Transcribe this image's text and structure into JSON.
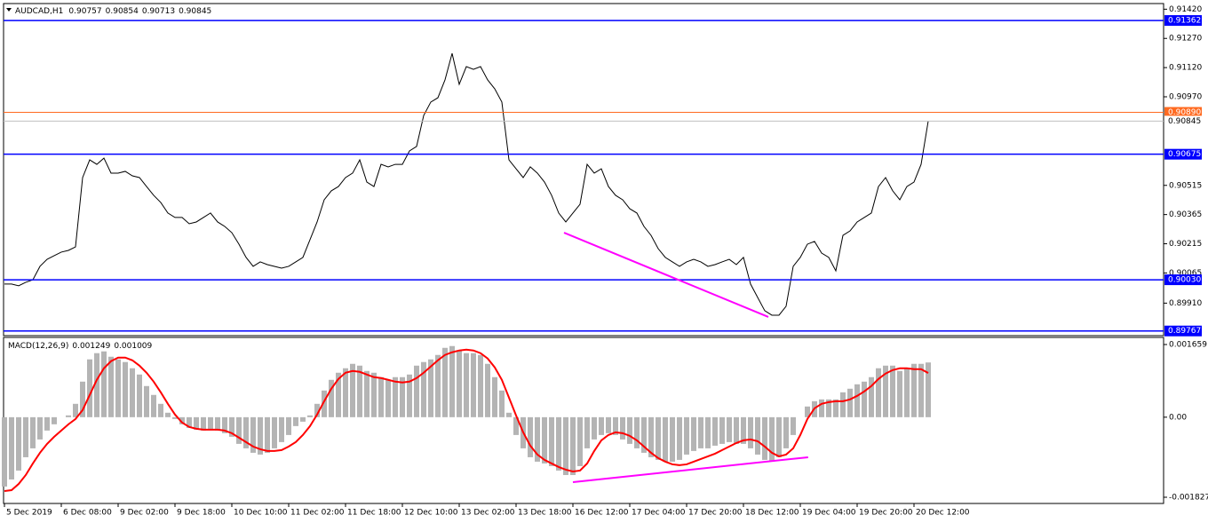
{
  "chart_data": [
    {
      "type": "line",
      "title": "AUDCAD,H1",
      "ohlc": [
        0.90757,
        0.90854,
        0.90713,
        0.90845
      ],
      "ylim": [
        0.89743,
        0.91449
      ],
      "yticks": [
        {
          "value": 0.9142,
          "label": "0.91420"
        },
        {
          "value": 0.9127,
          "label": "0.91270"
        },
        {
          "value": 0.9112,
          "label": "0.91120"
        },
        {
          "value": 0.9097,
          "label": "0.90970"
        },
        {
          "value": 0.90515,
          "label": "0.90515"
        },
        {
          "value": 0.90365,
          "label": "0.90365"
        },
        {
          "value": 0.90215,
          "label": "0.90215"
        },
        {
          "value": 0.90065,
          "label": "0.90065"
        },
        {
          "value": 0.8991,
          "label": "0.89910"
        }
      ],
      "series": [
        {
          "color": "#000000",
          "values": [
            0.90008,
            0.90008,
            0.89999,
            0.90017,
            0.9003,
            0.90099,
            0.90135,
            0.90154,
            0.90172,
            0.90181,
            0.90199,
            0.90555,
            0.90646,
            0.90623,
            0.90655,
            0.90578,
            0.90578,
            0.90587,
            0.90564,
            0.90555,
            0.90509,
            0.90464,
            0.90427,
            0.90373,
            0.9035,
            0.9035,
            0.90318,
            0.90327,
            0.9035,
            0.90373,
            0.90327,
            0.90304,
            0.90272,
            0.90213,
            0.90145,
            0.90099,
            0.90122,
            0.90108,
            0.90099,
            0.9009,
            0.90099,
            0.90122,
            0.90145,
            0.90236,
            0.90327,
            0.90441,
            0.90487,
            0.90509,
            0.90555,
            0.90578,
            0.90646,
            0.90532,
            0.90509,
            0.90623,
            0.9061,
            0.90623,
            0.90623,
            0.90692,
            0.90715,
            0.90874,
            0.90943,
            0.90965,
            0.91057,
            0.91193,
            0.91034,
            0.91125,
            0.91111,
            0.91125,
            0.91057,
            0.91011,
            0.90943,
            0.90646,
            0.906,
            0.90555,
            0.9061,
            0.90578,
            0.90532,
            0.90464,
            0.90373,
            0.90327,
            0.90373,
            0.90418,
            0.90623,
            0.90578,
            0.906,
            0.90509,
            0.90464,
            0.90441,
            0.90395,
            0.90373,
            0.90304,
            0.90258,
            0.9019,
            0.90145,
            0.90122,
            0.90099,
            0.90122,
            0.90135,
            0.90122,
            0.90099,
            0.90108,
            0.90122,
            0.90135,
            0.90108,
            0.90145,
            0.90008,
            0.89939,
            0.89871,
            0.89848,
            0.89848,
            0.89894,
            0.90099,
            0.90145,
            0.90213,
            0.90227,
            0.90167,
            0.90145,
            0.90076,
            0.90258,
            0.90281,
            0.90327,
            0.9035,
            0.90373,
            0.90509,
            0.90555,
            0.90487,
            0.90441,
            0.90509,
            0.90532,
            0.90623,
            0.90845
          ]
        }
      ],
      "levels": [
        {
          "value": 0.91362,
          "label": "0.91362",
          "color": "#0000ff"
        },
        {
          "value": 0.9089,
          "label": "0.90890",
          "color": "#ff6a20"
        },
        {
          "value": 0.90845,
          "label": "0.90845",
          "color": "#c0c0c0"
        },
        {
          "value": 0.90675,
          "label": "0.90675",
          "color": "#0000ff"
        },
        {
          "value": 0.9003,
          "label": "0.90030",
          "color": "#0000ff"
        },
        {
          "value": 0.89767,
          "label": "0.89767",
          "color": "#0000ff"
        }
      ],
      "trendline": {
        "x": [
          78.75,
          107.5
        ],
        "values": [
          0.90272,
          0.89839
        ],
        "color": "#ff00ff"
      }
    },
    {
      "type": "bar",
      "title": "MACD(12,26,9)",
      "readout": [
        0.001249,
        0.001009
      ],
      "ylim": [
        -0.001969,
        0.001821
      ],
      "yticks": [
        0.001659,
        {
          "value": 0,
          "label": "0.00"
        },
        -0.001827
      ],
      "categories": [
        "5 Dec 2019",
        null,
        null,
        null,
        null,
        null,
        null,
        null,
        "6 Dec 08:00",
        null,
        null,
        null,
        null,
        null,
        null,
        null,
        "9 Dec 02:00",
        null,
        null,
        null,
        null,
        null,
        null,
        null,
        "9 Dec 18:00",
        null,
        null,
        null,
        null,
        null,
        null,
        null,
        "10 Dec 10:00",
        null,
        null,
        null,
        null,
        null,
        null,
        null,
        "11 Dec 02:00",
        null,
        null,
        null,
        null,
        null,
        null,
        null,
        "11 Dec 18:00",
        null,
        null,
        null,
        null,
        null,
        null,
        null,
        "12 Dec 10:00",
        null,
        null,
        null,
        null,
        null,
        null,
        null,
        "13 Dec 02:00",
        null,
        null,
        null,
        null,
        null,
        null,
        null,
        "13 Dec 18:00",
        null,
        null,
        null,
        null,
        null,
        null,
        null,
        "16 Dec 12:00",
        null,
        null,
        null,
        null,
        null,
        null,
        null,
        "17 Dec 04:00",
        null,
        null,
        null,
        null,
        null,
        null,
        null,
        "17 Dec 20:00",
        null,
        null,
        null,
        null,
        null,
        null,
        null,
        "18 Dec 12:00",
        null,
        null,
        null,
        null,
        null,
        null,
        null,
        "19 Dec 04:00",
        null,
        null,
        null,
        null,
        null,
        null,
        null,
        "19 Dec 20:00",
        null,
        null,
        null,
        null,
        null,
        null,
        null,
        "20 Dec 12:00",
        null,
        null
      ],
      "series": [
        {
          "type": "bar",
          "color": "#b4b4b4",
          "values": [
            -0.001583,
            -0.001421,
            -0.001218,
            -0.000914,
            -0.000711,
            -0.000508,
            -0.000305,
            -0.000162,
            0,
            4.1e-05,
            0.000305,
            0.000812,
            0.00132,
            0.001462,
            0.001502,
            0.00138,
            0.00132,
            0.001259,
            0.001117,
            0.000974,
            0.000711,
            0.000508,
            0.000305,
            0.000102,
            -4.1e-05,
            -0.000162,
            -0.000244,
            -0.000284,
            -0.000305,
            -0.000284,
            -0.000305,
            -0.000365,
            -0.000447,
            -0.000609,
            -0.000711,
            -0.000812,
            -0.000853,
            -0.000812,
            -0.000711,
            -0.000568,
            -0.000406,
            -0.000203,
            -0.000102,
            4.1e-05,
            0.000305,
            0.000609,
            0.000853,
            0.001015,
            0.001117,
            0.001218,
            0.001177,
            0.001056,
            0.001015,
            0.000914,
            0.000853,
            0.000914,
            0.000914,
            0.000974,
            0.001177,
            0.001259,
            0.00132,
            0.001421,
            0.001583,
            0.001624,
            0.001523,
            0.001462,
            0.001462,
            0.001421,
            0.001218,
            0.000914,
            0.000609,
            0.000102,
            -0.000406,
            -0.000711,
            -0.000914,
            -0.001015,
            -0.001056,
            -0.001117,
            -0.001218,
            -0.00132,
            -0.00132,
            -0.001117,
            -0.000711,
            -0.000508,
            -0.000406,
            -0.000365,
            -0.000406,
            -0.000508,
            -0.000609,
            -0.000711,
            -0.000812,
            -0.000914,
            -0.000974,
            -0.001015,
            -0.001015,
            -0.000974,
            -0.000853,
            -0.000771,
            -0.000711,
            -0.000711,
            -0.00065,
            -0.000609,
            -0.000568,
            -0.000609,
            -0.000609,
            -0.000711,
            -0.000853,
            -0.000974,
            -0.001015,
            -0.000914,
            -0.000711,
            -0.000406,
            0,
            0.000244,
            0.000365,
            0.000406,
            0.000406,
            0.000406,
            0.000568,
            0.00065,
            0.000751,
            0.000812,
            0.000914,
            0.001117,
            0.001177,
            0.001177,
            0.001056,
            0.001117,
            0.001218,
            0.001218,
            0.001249
          ]
        },
        {
          "type": "line",
          "color": "#ff0000",
          "values": [
            -0.001685,
            -0.001665,
            -0.001523,
            -0.00132,
            -0.001056,
            -0.000812,
            -0.000609,
            -0.000447,
            -0.000305,
            -0.000162,
            -4.1e-05,
            0.000162,
            0.000508,
            0.000853,
            0.001117,
            0.001279,
            0.00136,
            0.00136,
            0.001299,
            0.001177,
            0.001015,
            0.000812,
            0.000568,
            0.000305,
            6.1e-05,
            -0.000122,
            -0.000223,
            -0.000264,
            -0.000284,
            -0.000284,
            -0.000284,
            -0.000305,
            -0.000365,
            -0.000467,
            -0.000568,
            -0.00067,
            -0.000731,
            -0.000771,
            -0.000771,
            -0.000751,
            -0.00067,
            -0.000568,
            -0.000406,
            -0.000203,
            6.1e-05,
            0.000365,
            0.00065,
            0.000873,
            0.001015,
            0.001056,
            0.001035,
            0.000974,
            0.000914,
            0.000893,
            0.000853,
            0.000812,
            0.000792,
            0.000812,
            0.000893,
            0.001015,
            0.001157,
            0.001299,
            0.001421,
            0.001482,
            0.001523,
            0.001543,
            0.001523,
            0.001462,
            0.00134,
            0.001137,
            0.000853,
            0.000447,
            4.1e-05,
            -0.000345,
            -0.00065,
            -0.000853,
            -0.000974,
            -0.001056,
            -0.001137,
            -0.001198,
            -0.001238,
            -0.001218,
            -0.001056,
            -0.000771,
            -0.000528,
            -0.000406,
            -0.000345,
            -0.000365,
            -0.000426,
            -0.000528,
            -0.00067,
            -0.000812,
            -0.000934,
            -0.001015,
            -0.001076,
            -0.001096,
            -0.001076,
            -0.001015,
            -0.000954,
            -0.000893,
            -0.000832,
            -0.000751,
            -0.00067,
            -0.000589,
            -0.000528,
            -0.000508,
            -0.000548,
            -0.00067,
            -0.000812,
            -0.000893,
            -0.000853,
            -0.000711,
            -0.000406,
            -4.1e-05,
            0.000203,
            0.000305,
            0.000345,
            0.000365,
            0.000365,
            0.000406,
            0.000487,
            0.000589,
            0.000711,
            0.000873,
            0.000995,
            0.001076,
            0.001117,
            0.001117,
            0.001096,
            0.001096,
            0.001009
          ]
        }
      ],
      "trendline": {
        "x": [
          80,
          113.1
        ],
        "values": [
          -0.001482,
          -0.000914
        ],
        "color": "#ff00ff"
      }
    }
  ]
}
